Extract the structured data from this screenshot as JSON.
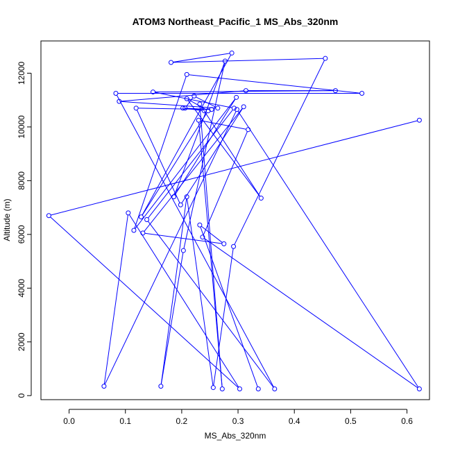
{
  "chart_data": {
    "type": "line",
    "title": "ATOM3 Northeast_Pacific_1 MS_Abs_320nm",
    "xlabel": "MS_Abs_320nm",
    "ylabel": "Altitude (m)",
    "xlim": [
      -0.05,
      0.64
    ],
    "ylim": [
      -150,
      13200
    ],
    "xticks": [
      0.0,
      0.1,
      0.2,
      0.3,
      0.4,
      0.5,
      0.6
    ],
    "yticks": [
      0,
      2000,
      4000,
      6000,
      8000,
      10000,
      12000
    ],
    "grid": false,
    "line_color": "#0000ff",
    "markers": "open-circle",
    "series": [
      {
        "x": [
          0.622,
          -0.036,
          0.303,
          0.105,
          0.062,
          0.298,
          0.622,
          0.237,
          0.318,
          0.23,
          0.272,
          0.232,
          0.341,
          0.209,
          0.247,
          0.128,
          0.289,
          0.181,
          0.455,
          0.292,
          0.256,
          0.209,
          0.163,
          0.203,
          0.277,
          0.186,
          0.297,
          0.115,
          0.209,
          0.52,
          0.083,
          0.365,
          0.138,
          0.293,
          0.149,
          0.473,
          0.314,
          0.089,
          0.264,
          0.222,
          0.206,
          0.24,
          0.202,
          0.253,
          0.119,
          0.198,
          0.31,
          0.131,
          0.275,
          0.232,
          0.336
        ],
        "y": [
          10250,
          6700,
          250,
          6800,
          350,
          10650,
          250,
          5900,
          9900,
          10250,
          250,
          10850,
          7350,
          11050,
          10600,
          6650,
          12750,
          12400,
          12550,
          5550,
          300,
          7400,
          350,
          5400,
          12450,
          7400,
          11100,
          6150,
          11950,
          11250,
          11250,
          250,
          6550,
          10700,
          11300,
          11350,
          11350,
          10950,
          10700,
          11150,
          10700,
          10600,
          10700,
          10650,
          10700,
          7100,
          10750,
          6050,
          5650,
          6350,
          250
        ]
      }
    ]
  }
}
